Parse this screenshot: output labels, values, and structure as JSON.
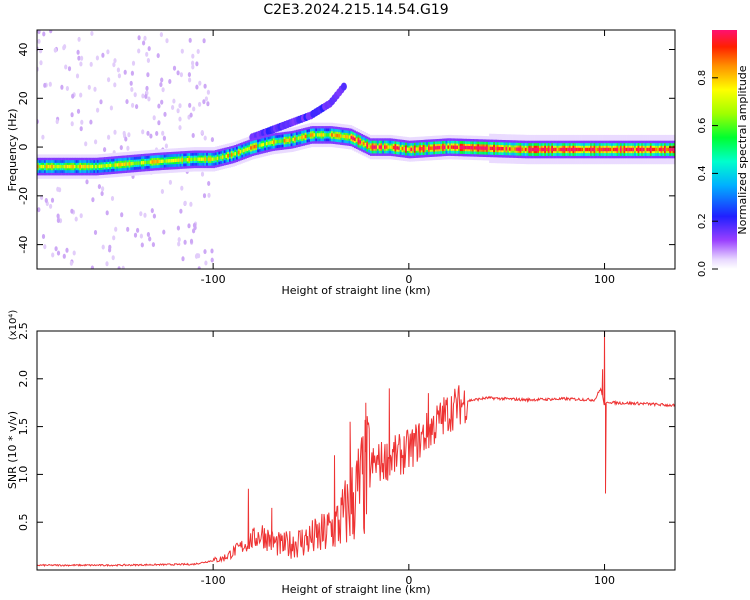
{
  "title": "C2E3.2024.215.14.54.G19",
  "chart_data": [
    {
      "type": "heatmap",
      "xlabel": "Height of straight line (km)",
      "ylabel": "Frequency (Hz)",
      "xlim": [
        -190,
        136
      ],
      "ylim": [
        -50,
        48
      ],
      "xticks": [
        -100,
        0,
        100
      ],
      "yticks": [
        -40,
        -20,
        0,
        20,
        40
      ],
      "colorbar": {
        "label": "Normalized spectral amplitude",
        "range": [
          0,
          1
        ],
        "ticks": [
          0.0,
          0.2,
          0.4,
          0.6,
          0.8
        ]
      },
      "ridge_frequency": {
        "x": [
          -190,
          -160,
          -130,
          -110,
          -100,
          -90,
          -80,
          -70,
          -60,
          -50,
          -40,
          -30,
          -20,
          -10,
          0,
          20,
          60,
          100,
          136
        ],
        "y": [
          -8,
          -8,
          -6,
          -5,
          -5,
          -3,
          0,
          2,
          3,
          5,
          5,
          4,
          0,
          0,
          -1,
          0,
          -1,
          -1,
          -1
        ]
      },
      "secondary_branch": {
        "x": [
          -80,
          -70,
          -60,
          -50,
          -40,
          -32
        ],
        "y": [
          4,
          7,
          10,
          13,
          18,
          26
        ]
      }
    },
    {
      "type": "line",
      "xlabel": "Height of straight line (km)",
      "ylabel": "SNR (10 * v/v)",
      "scale_label": "(x10⁴)",
      "xlim": [
        -190,
        136
      ],
      "ylim": [
        0,
        2.5
      ],
      "xticks": [
        -100,
        0,
        100
      ],
      "yticks": [
        0.5,
        1.0,
        1.5,
        2.0,
        2.5
      ],
      "series": [
        {
          "color": "#ee3333",
          "x": [
            -190,
            -150,
            -110,
            -95,
            -85,
            -75,
            -70,
            -65,
            -55,
            -45,
            -35,
            -28,
            -22,
            -18,
            -12,
            -5,
            0,
            5,
            10,
            15,
            20,
            25,
            30,
            40,
            60,
            80,
            95,
            98,
            100,
            102,
            105,
            120,
            136
          ],
          "y": [
            0.05,
            0.05,
            0.06,
            0.12,
            0.25,
            0.38,
            0.3,
            0.25,
            0.3,
            0.35,
            0.5,
            0.75,
            0.95,
            1.1,
            1.15,
            1.2,
            1.25,
            1.35,
            1.45,
            1.55,
            1.65,
            1.72,
            1.77,
            1.8,
            1.78,
            1.79,
            1.78,
            1.9,
            1.72,
            1.76,
            1.75,
            1.74,
            1.72
          ],
          "spikes": [
            [
              -82,
              0.85
            ],
            [
              -70,
              0.65
            ],
            [
              -38,
              1.2
            ],
            [
              -30,
              1.55
            ],
            [
              -22,
              1.75
            ],
            [
              -10,
              1.9
            ],
            [
              10,
              1.85
            ],
            [
              99,
              2.1
            ],
            [
              100,
              2.55
            ],
            [
              100.5,
              0.8
            ]
          ]
        }
      ]
    }
  ]
}
